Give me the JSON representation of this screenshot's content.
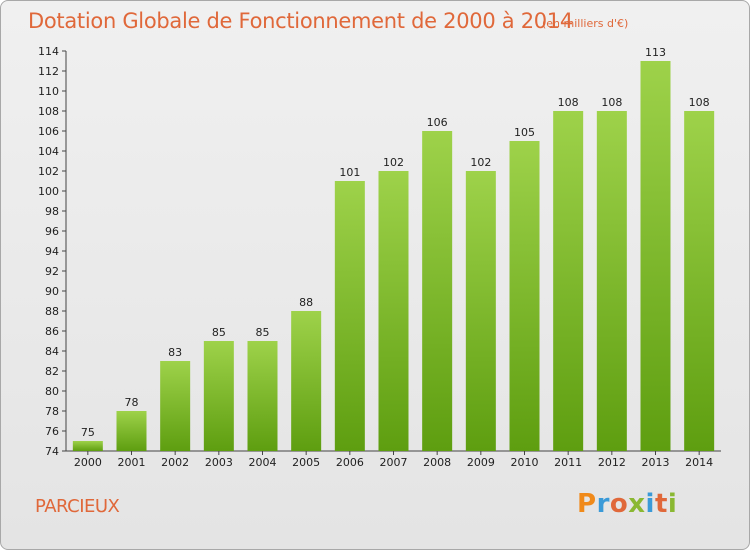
{
  "header": {
    "title": "Dotation Globale de Fonctionnement de 2000 à 2014",
    "subtitle": "(en milliers d'€)"
  },
  "footer": {
    "commune": "PARCIEUX",
    "logo_text": "Proxiti"
  },
  "colors": {
    "title": "#e0683a",
    "bar_light": "#9ed24a",
    "bar_dark": "#5e9e10",
    "logo_letters": [
      "#f08a1a",
      "#3a9ad8",
      "#e0683a",
      "#8ab832",
      "#3a9ad8",
      "#e0683a",
      "#8ab832"
    ]
  },
  "chart_data": {
    "type": "bar",
    "title": "Dotation Globale de Fonctionnement de 2000 à 2014",
    "subtitle": "(en milliers d'€)",
    "categories": [
      "2000",
      "2001",
      "2002",
      "2003",
      "2004",
      "2005",
      "2006",
      "2007",
      "2008",
      "2009",
      "2010",
      "2011",
      "2012",
      "2013",
      "2014"
    ],
    "values": [
      75,
      78,
      83,
      85,
      85,
      88,
      101,
      102,
      106,
      102,
      105,
      108,
      108,
      113,
      108
    ],
    "ylim": [
      74,
      114
    ],
    "yticks": [
      74,
      76,
      78,
      80,
      82,
      84,
      86,
      88,
      90,
      92,
      94,
      96,
      98,
      100,
      102,
      104,
      106,
      108,
      110,
      112,
      114
    ],
    "grid": false,
    "data_labels": true
  }
}
